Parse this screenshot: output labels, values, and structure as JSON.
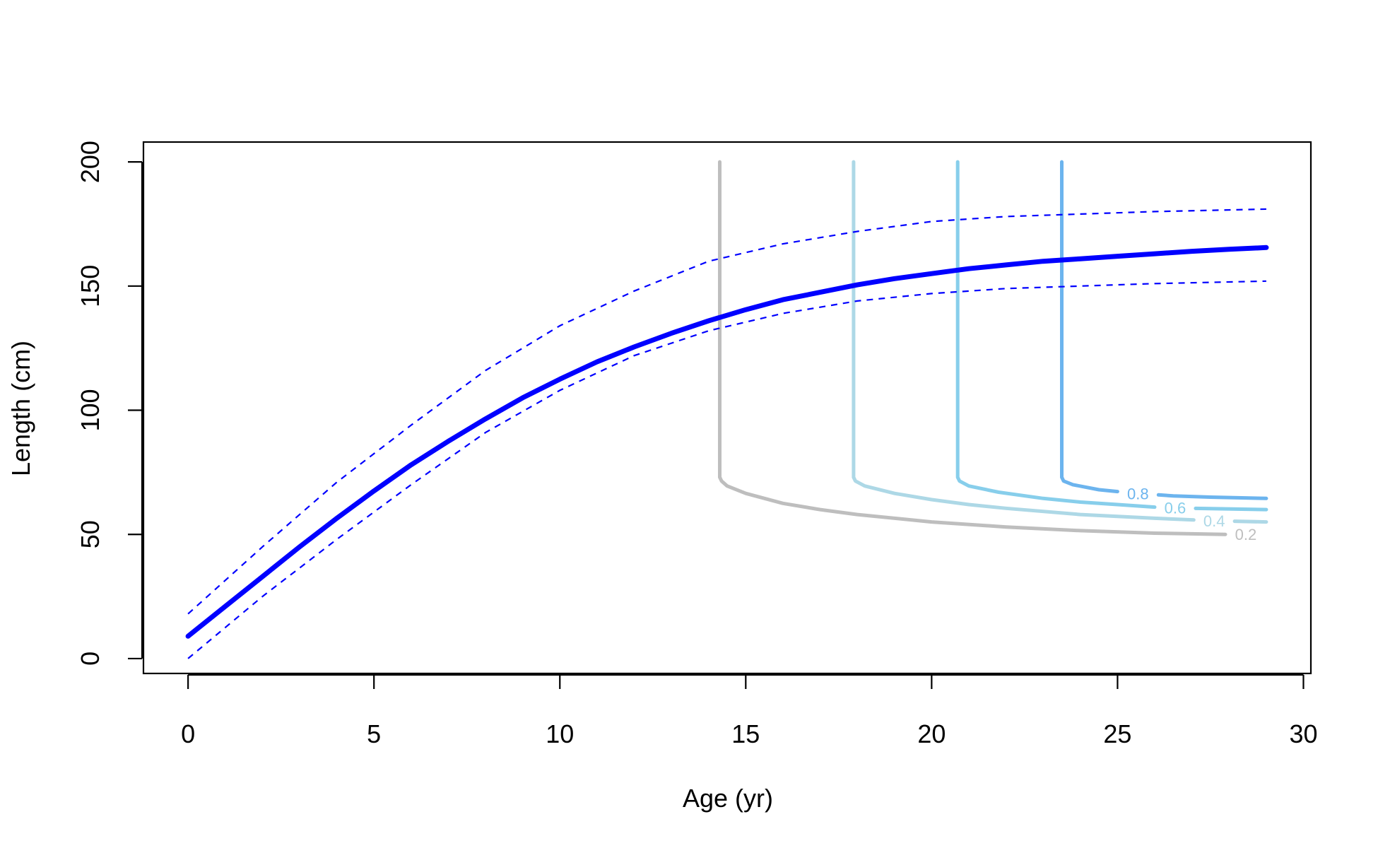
{
  "chart_data": {
    "type": "line",
    "title": "",
    "xlabel": "Age (yr)",
    "ylabel": "Length (cm)",
    "xlim": [
      -1.2,
      30.2
    ],
    "ylim": [
      -6,
      208
    ],
    "x_ticks": [
      0,
      5,
      10,
      15,
      20,
      25,
      30
    ],
    "y_ticks": [
      0,
      50,
      100,
      150,
      200
    ],
    "grid": false,
    "legend": "none",
    "growth_curve": {
      "color": "#0000ff",
      "x": [
        0,
        1,
        2,
        3,
        4,
        5,
        6,
        7,
        8,
        9,
        10,
        11,
        12,
        13,
        14,
        15,
        16,
        17,
        18,
        19,
        20,
        21,
        22,
        23,
        24,
        25,
        26,
        27,
        28,
        29
      ],
      "y": [
        9,
        21,
        33,
        45,
        56.5,
        67.5,
        78,
        87.5,
        96.5,
        105,
        112.5,
        119.5,
        125.5,
        131,
        136,
        140.5,
        144.5,
        147.5,
        150.5,
        153,
        155,
        157,
        158.5,
        160,
        161,
        162,
        163,
        164,
        164.8,
        165.5
      ]
    },
    "upper_band": {
      "color": "#0000ff",
      "style": "dashed",
      "x": [
        0,
        2,
        4,
        6,
        8,
        10,
        12,
        14,
        16,
        18,
        20,
        22,
        24,
        26,
        29
      ],
      "y": [
        18,
        45,
        71,
        94,
        116,
        134,
        148,
        160,
        167,
        172,
        176,
        178,
        179,
        180,
        181
      ]
    },
    "lower_band": {
      "color": "#0000ff",
      "style": "dashed",
      "x": [
        0,
        2,
        4,
        6,
        8,
        10,
        12,
        14,
        16,
        18,
        20,
        22,
        24,
        26,
        29
      ],
      "y": [
        0,
        25,
        48,
        70,
        91,
        108,
        122,
        132,
        139,
        144,
        147,
        149,
        150,
        151,
        152
      ]
    },
    "contours": [
      {
        "label": "0.2",
        "color": "#bebebe",
        "x": [
          14.3,
          14.3,
          14.35,
          14.5,
          15,
          16,
          17,
          18,
          20,
          22,
          24,
          26,
          27.9
        ],
        "y": [
          200,
          73,
          71.5,
          69.5,
          66.5,
          62.5,
          60,
          58,
          55,
          53,
          51.5,
          50.5,
          50
        ]
      },
      {
        "label": "0.4",
        "color": "#add8e6",
        "x": [
          17.9,
          17.9,
          17.95,
          18.2,
          19,
          20,
          21,
          22,
          24,
          26,
          27.5,
          29
        ],
        "y": [
          200,
          73,
          71.5,
          69.5,
          66.5,
          64,
          62,
          60.5,
          58,
          56.5,
          55.5,
          55
        ]
      },
      {
        "label": "0.6",
        "color": "#87ceeb",
        "x": [
          20.7,
          20.7,
          20.75,
          21,
          21.8,
          23,
          24,
          25,
          26,
          27,
          29
        ],
        "y": [
          200,
          73,
          71.5,
          69.5,
          67,
          64.5,
          63,
          62,
          61,
          60.5,
          60
        ]
      },
      {
        "label": "0.8",
        "color": "#6cb4ee",
        "x": [
          23.5,
          23.5,
          23.55,
          23.8,
          24.5,
          25.5,
          26.5,
          27.5,
          29
        ],
        "y": [
          200,
          73,
          71.5,
          70,
          68,
          66.5,
          65.5,
          65,
          64.5
        ]
      }
    ]
  }
}
